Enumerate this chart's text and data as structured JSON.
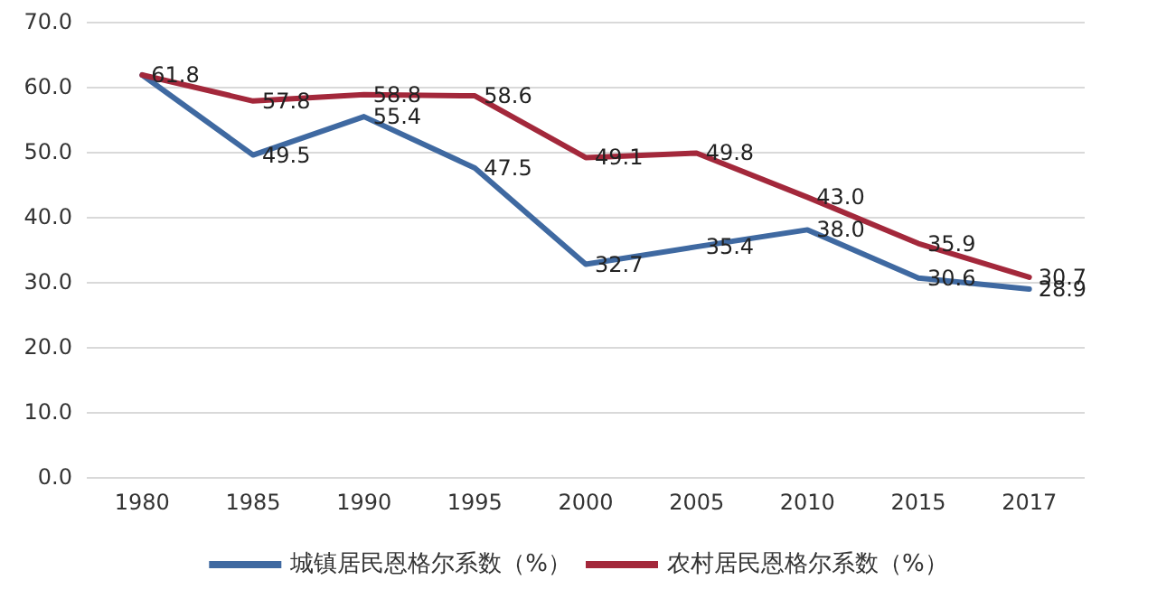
{
  "chart_data": {
    "type": "line",
    "categories": [
      "1980",
      "1985",
      "1990",
      "1995",
      "2000",
      "2005",
      "2010",
      "2015",
      "2017"
    ],
    "series": [
      {
        "name": "城镇居民恩格尔系数（%）",
        "color": "#3f69a1",
        "values": [
          61.8,
          49.5,
          55.4,
          47.5,
          32.7,
          35.4,
          38.0,
          30.6,
          28.9
        ],
        "value_labels": [
          null,
          "49.5",
          "55.4",
          "47.5",
          "32.7",
          "35.4",
          "38.0",
          "30.6",
          "28.9"
        ]
      },
      {
        "name": "农村居民恩格尔系数（%）",
        "color": "#a3283b",
        "values": [
          61.8,
          57.8,
          58.8,
          58.6,
          49.1,
          49.8,
          43.0,
          35.9,
          30.7
        ],
        "value_labels": [
          "61.8",
          "57.8",
          "58.8",
          "58.6",
          "49.1",
          "49.8",
          "43.0",
          "35.9",
          "30.7"
        ]
      }
    ],
    "ylim": [
      0,
      70
    ],
    "yticks": [
      {
        "value": 0,
        "label": "0.0"
      },
      {
        "value": 10,
        "label": "10.0"
      },
      {
        "value": 20,
        "label": "20.0"
      },
      {
        "value": 30,
        "label": "30.0"
      },
      {
        "value": 40,
        "label": "40.0"
      },
      {
        "value": 50,
        "label": "50.0"
      },
      {
        "value": 60,
        "label": "60.0"
      },
      {
        "value": 70,
        "label": "70.0"
      }
    ],
    "grid": "y",
    "legend": "bottom",
    "marker": "none",
    "line_style": "solid"
  }
}
